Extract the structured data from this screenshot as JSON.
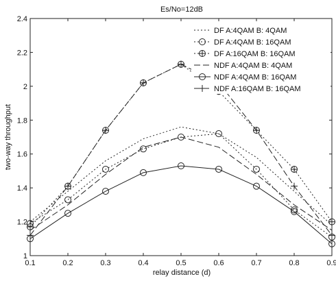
{
  "chart_data": {
    "type": "line",
    "title": "Es/No=12dB",
    "xlabel": "relay distance (d)",
    "ylabel": "two-way throughput",
    "xlim": [
      0.1,
      0.9
    ],
    "ylim": [
      1,
      2.4
    ],
    "xticks": [
      "0.1",
      "0.2",
      "0.3",
      "0.4",
      "0.5",
      "0.6",
      "0.7",
      "0.8",
      "0.9"
    ],
    "yticks": [
      "1",
      "1.2",
      "1.4",
      "1.6",
      "1.8",
      "2",
      "2.2",
      "2.4"
    ],
    "grid": false,
    "legend_position": "top-right",
    "x": [
      0.1,
      0.2,
      0.3,
      0.4,
      0.5,
      0.6,
      0.7,
      0.8,
      0.9
    ],
    "series": [
      {
        "name": "DF A:4QAM B: 4QAM",
        "marker": "none",
        "dash": "2,3",
        "values": [
          1.2,
          1.38,
          1.56,
          1.69,
          1.76,
          1.72,
          1.58,
          1.38,
          1.18
        ]
      },
      {
        "name": "DF A:4QAM B: 16QAM",
        "marker": "circle",
        "dash": "2,3",
        "values": [
          1.19,
          1.33,
          1.51,
          1.63,
          1.7,
          1.72,
          1.51,
          1.27,
          1.11
        ]
      },
      {
        "name": "DF A:16QAM B: 16QAM",
        "marker": "circle-plus",
        "dash": "2,3",
        "values": [
          1.17,
          1.41,
          1.74,
          2.02,
          2.13,
          1.97,
          1.74,
          1.51,
          1.2
        ]
      },
      {
        "name": "NDF A:4QAM B: 4QAM",
        "marker": "none",
        "dash": "9,4",
        "values": [
          1.15,
          1.3,
          1.48,
          1.64,
          1.7,
          1.64,
          1.48,
          1.3,
          1.15
        ]
      },
      {
        "name": "NDF A:4QAM B: 16QAM",
        "marker": "circle",
        "dash": "",
        "values": [
          1.1,
          1.25,
          1.38,
          1.49,
          1.53,
          1.51,
          1.41,
          1.26,
          1.07
        ]
      },
      {
        "name": "NDF A:16QAM B: 16QAM",
        "marker": "plus",
        "dash": "9,4",
        "values": [
          1.12,
          1.41,
          1.74,
          2.02,
          2.13,
          2.02,
          1.74,
          1.41,
          1.12
        ]
      }
    ]
  }
}
